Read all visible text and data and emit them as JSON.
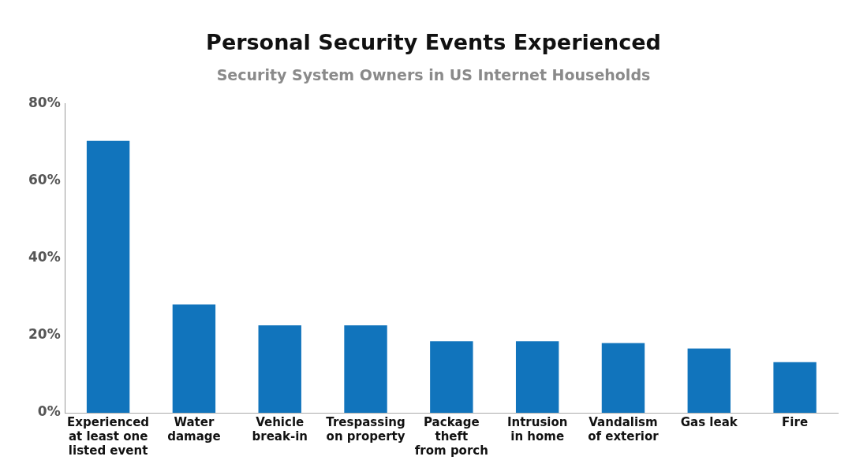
{
  "chart_data": {
    "type": "bar",
    "title": "Personal Security Events Experienced",
    "subtitle": "Security System Owners in US Internet Households",
    "categories": [
      "Experienced\nat least one\nlisted event",
      "Water\ndamage",
      "Vehicle\nbreak-in",
      "Trespassing\non property",
      "Package\ntheft\nfrom porch",
      "Intrusion\nin home",
      "Vandalism\nof exterior",
      "Gas leak",
      "Fire"
    ],
    "values": [
      70.3,
      28,
      22.6,
      22.6,
      18.5,
      18.5,
      18,
      16.6,
      13.1
    ],
    "color": "#1174bc",
    "ylim": [
      0,
      80
    ],
    "yticks": [
      {
        "value": 0,
        "label": "0%"
      },
      {
        "value": 20,
        "label": "20%"
      },
      {
        "value": 40,
        "label": "40%"
      },
      {
        "value": 60,
        "label": "60%"
      },
      {
        "value": 80,
        "label": "80%"
      }
    ],
    "grid": false,
    "legend": false
  }
}
